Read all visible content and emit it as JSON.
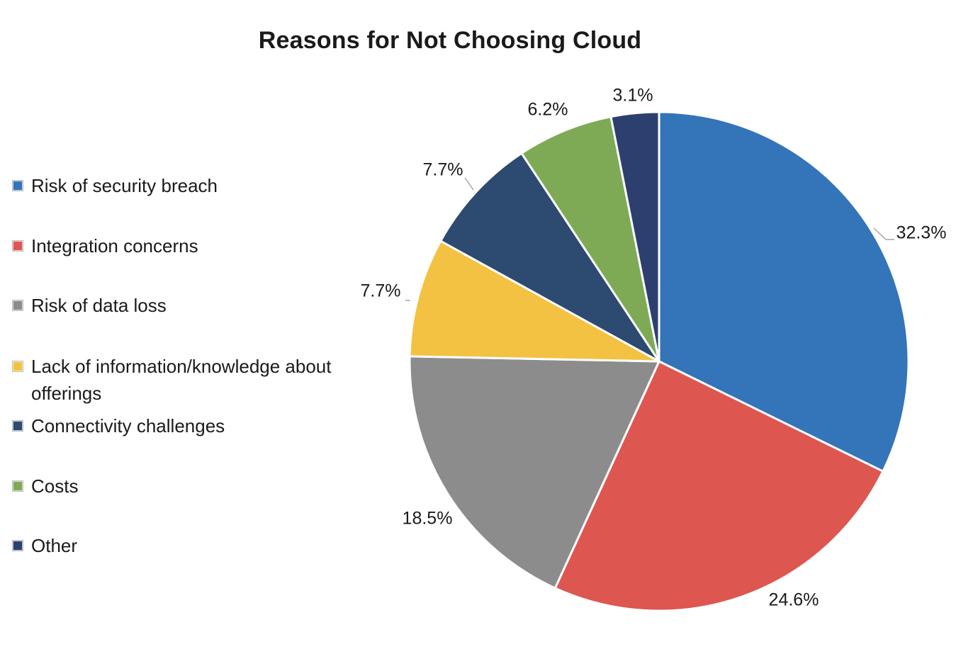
{
  "chart_data": {
    "type": "pie",
    "title": "Reasons for Not Choosing Cloud",
    "legend_position": "left",
    "slices": [
      {
        "label": "Risk of security breach",
        "value": 32.3,
        "display": "32.3%",
        "color": "#3474B8"
      },
      {
        "label": "Integration concerns",
        "value": 24.6,
        "display": "24.6%",
        "color": "#DE5650"
      },
      {
        "label": "Risk of data loss",
        "value": 18.5,
        "display": "18.5%",
        "color": "#8C8C8C"
      },
      {
        "label": "Lack of information/knowledge about offerings",
        "value": 7.7,
        "display": "7.7%",
        "color": "#F3C242"
      },
      {
        "label": "Connectivity challenges",
        "value": 7.7,
        "display": "7.7%",
        "color": "#2D4A70"
      },
      {
        "label": "Costs",
        "value": 6.2,
        "display": "6.2%",
        "color": "#7EAA55"
      },
      {
        "label": "Other",
        "value": 3.1,
        "display": "3.1%",
        "color": "#2D3F6E"
      }
    ]
  }
}
